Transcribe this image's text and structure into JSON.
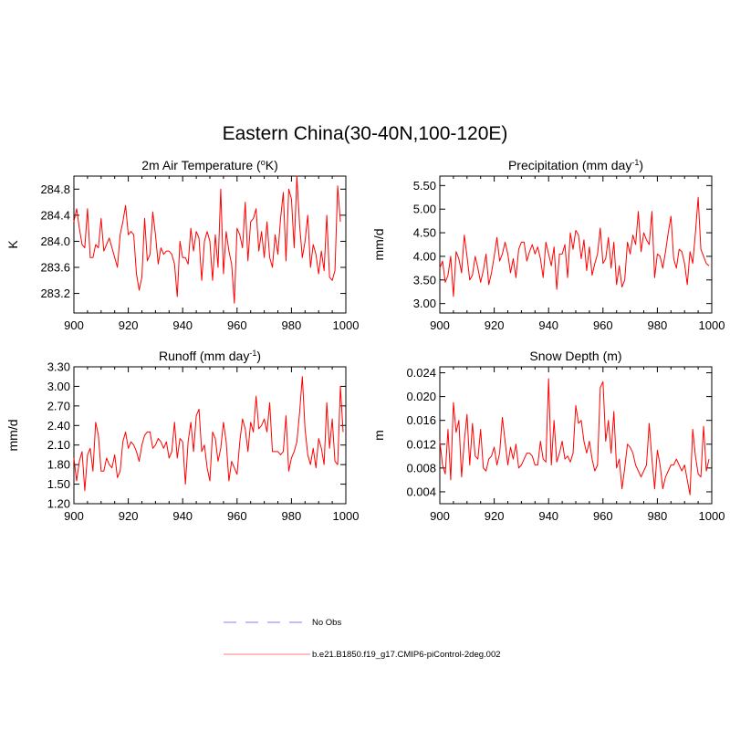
{
  "figure_title": "Eastern China(30-40N,100-120E)",
  "legend": {
    "entries": [
      {
        "label": "No Obs",
        "color": "#9999ff",
        "dash": "dashed"
      },
      {
        "label": "b.e21.B1850.f19_g17.CMIP6-piControl-2deg.002",
        "color": "#ff9999",
        "dash": "solid"
      }
    ]
  },
  "chart_data": [
    {
      "type": "line",
      "title": "2m Air Temperature (°K)",
      "title_main": "2m Air Temperature (",
      "title_sup": "o",
      "title_tail": "K)",
      "ylabel": "K",
      "xlim": [
        900,
        1000
      ],
      "ylim": [
        282.9,
        285.0
      ],
      "xticks": [
        900,
        920,
        940,
        960,
        980,
        1000
      ],
      "yticks": [
        283.2,
        283.6,
        284.0,
        284.4,
        284.8
      ],
      "ytick_labels": [
        "283.2",
        "283.6",
        "284.0",
        "284.4",
        "284.8"
      ],
      "series": [
        {
          "name": "b.e21.B1850.f19_g17.CMIP6-piControl-2deg.002",
          "color": "#ff0000",
          "x_start": 900,
          "values": [
            284.3,
            284.5,
            284.2,
            283.95,
            283.9,
            284.5,
            283.75,
            283.75,
            283.95,
            283.9,
            284.35,
            283.85,
            283.95,
            284.05,
            283.9,
            283.75,
            283.6,
            284.1,
            284.3,
            284.55,
            284.1,
            284.15,
            284.1,
            283.5,
            283.25,
            283.45,
            284.35,
            283.7,
            283.8,
            284.45,
            284.1,
            283.65,
            283.9,
            283.8,
            283.85,
            283.85,
            283.8,
            283.65,
            283.15,
            284.0,
            283.75,
            283.75,
            283.65,
            284.2,
            283.85,
            284.15,
            284.05,
            283.4,
            284.0,
            284.15,
            284.0,
            283.4,
            284.1,
            283.6,
            284.8,
            283.5,
            284.15,
            283.85,
            283.65,
            283.05,
            284.2,
            284.1,
            283.9,
            284.6,
            283.7,
            284.3,
            284.35,
            284.5,
            283.85,
            284.15,
            283.75,
            284.3,
            283.75,
            283.6,
            284.1,
            283.8,
            284.35,
            284.75,
            283.7,
            284.8,
            284.65,
            283.9,
            285.0,
            284.25,
            283.75,
            284.0,
            284.4,
            283.6,
            283.95,
            283.8,
            283.5,
            283.85,
            283.55,
            284.4,
            283.45,
            283.4,
            283.55,
            284.85,
            284.3
          ]
        }
      ]
    },
    {
      "type": "line",
      "title": "Precipitation (mm day-1)",
      "title_main": "Precipitation (mm day",
      "title_sup": "-1",
      "title_tail": ")",
      "ylabel": "mm/d",
      "xlim": [
        900,
        1000
      ],
      "ylim": [
        2.8,
        5.7
      ],
      "xticks": [
        900,
        920,
        940,
        960,
        980,
        1000
      ],
      "yticks": [
        3.0,
        3.5,
        4.0,
        4.5,
        5.0,
        5.5
      ],
      "ytick_labels": [
        "3.00",
        "3.50",
        "4.00",
        "4.50",
        "5.00",
        "5.50"
      ],
      "series": [
        {
          "name": "b.e21.B1850.f19_g17.CMIP6-piControl-2deg.002",
          "color": "#ff0000",
          "x_start": 900,
          "values": [
            3.75,
            3.9,
            3.45,
            3.6,
            4.0,
            3.15,
            4.1,
            3.95,
            3.65,
            4.45,
            4.0,
            3.5,
            3.6,
            4.0,
            3.75,
            3.45,
            3.7,
            4.05,
            3.4,
            3.65,
            4.0,
            4.4,
            3.9,
            4.05,
            4.3,
            4.05,
            3.65,
            3.95,
            3.55,
            4.15,
            4.3,
            4.3,
            3.9,
            4.1,
            4.25,
            4.05,
            4.2,
            3.95,
            3.55,
            4.3,
            4.05,
            3.8,
            4.2,
            3.3,
            4.05,
            4.05,
            4.25,
            3.55,
            4.5,
            4.15,
            4.55,
            4.45,
            3.95,
            4.35,
            3.7,
            4.2,
            3.6,
            3.85,
            4.05,
            4.6,
            3.85,
            3.95,
            4.4,
            3.75,
            4.3,
            3.4,
            3.8,
            3.35,
            3.5,
            4.3,
            4.05,
            4.45,
            4.25,
            4.95,
            4.1,
            4.5,
            4.35,
            4.25,
            4.95,
            3.55,
            4.05,
            4.0,
            3.75,
            4.1,
            4.5,
            4.85,
            3.95,
            3.75,
            4.15,
            4.1,
            3.85,
            3.4,
            4.1,
            3.85,
            4.5,
            5.25,
            4.15,
            4.0,
            3.85,
            3.8
          ]
        }
      ]
    },
    {
      "type": "line",
      "title": "Runoff (mm day-1)",
      "title_main": "Runoff (mm day",
      "title_sup": "-1",
      "title_tail": ")",
      "ylabel": "mm/d",
      "xlim": [
        900,
        1000
      ],
      "ylim": [
        1.2,
        3.3
      ],
      "xticks": [
        900,
        920,
        940,
        960,
        980,
        1000
      ],
      "yticks": [
        1.2,
        1.5,
        1.8,
        2.1,
        2.4,
        2.7,
        3.0,
        3.3
      ],
      "ytick_labels": [
        "1.20",
        "1.50",
        "1.80",
        "2.10",
        "2.40",
        "2.70",
        "3.00",
        "3.30"
      ],
      "series": [
        {
          "name": "b.e21.B1850.f19_g17.CMIP6-piControl-2deg.002",
          "color": "#ff0000",
          "x_start": 900,
          "values": [
            1.9,
            1.55,
            1.85,
            2.0,
            1.4,
            1.95,
            2.05,
            1.7,
            2.45,
            2.25,
            1.7,
            1.7,
            1.9,
            1.8,
            1.75,
            1.95,
            1.6,
            1.7,
            2.15,
            2.3,
            2.05,
            2.15,
            2.1,
            2.0,
            1.85,
            2.1,
            2.25,
            2.3,
            2.3,
            2.05,
            2.1,
            2.2,
            2.15,
            2.05,
            2.15,
            1.9,
            2.0,
            2.45,
            1.9,
            2.2,
            2.15,
            1.5,
            2.15,
            2.45,
            2.0,
            2.55,
            2.65,
            2.0,
            2.1,
            1.75,
            1.55,
            2.3,
            2.2,
            1.85,
            2.05,
            2.45,
            2.15,
            1.55,
            1.85,
            1.75,
            1.65,
            2.15,
            2.5,
            2.35,
            2.0,
            2.45,
            2.3,
            2.85,
            2.35,
            2.4,
            2.5,
            2.3,
            2.75,
            2.0,
            2.0,
            2.0,
            1.95,
            2.0,
            2.55,
            1.7,
            1.9,
            2.0,
            2.15,
            2.6,
            3.15,
            2.35,
            1.95,
            1.8,
            2.05,
            1.75,
            2.2,
            2.05,
            1.8,
            2.75,
            2.05,
            2.5,
            1.85,
            1.8,
            3.0,
            2.3
          ]
        }
      ]
    },
    {
      "type": "line",
      "title": "Snow Depth (m)",
      "title_main": "Snow Depth (m)",
      "title_sup": "",
      "title_tail": "",
      "ylabel": "m",
      "xlim": [
        900,
        1000
      ],
      "ylim": [
        0.002,
        0.025
      ],
      "xticks": [
        900,
        920,
        940,
        960,
        980,
        1000
      ],
      "yticks": [
        0.004,
        0.008,
        0.012,
        0.016,
        0.02,
        0.024
      ],
      "ytick_labels": [
        "0.004",
        "0.008",
        "0.012",
        "0.016",
        "0.020",
        "0.024"
      ],
      "series": [
        {
          "name": "b.e21.B1850.f19_g17.CMIP6-piControl-2deg.002",
          "color": "#ff0000",
          "x_start": 900,
          "values": [
            0.0125,
            0.0085,
            0.007,
            0.0145,
            0.006,
            0.019,
            0.014,
            0.016,
            0.0065,
            0.0125,
            0.017,
            0.0085,
            0.0155,
            0.01,
            0.0095,
            0.0145,
            0.008,
            0.0075,
            0.0095,
            0.01,
            0.0115,
            0.0085,
            0.0105,
            0.0165,
            0.0125,
            0.0085,
            0.0115,
            0.0095,
            0.012,
            0.008,
            0.0085,
            0.0095,
            0.0105,
            0.0105,
            0.01,
            0.0085,
            0.0085,
            0.0125,
            0.0095,
            0.009,
            0.023,
            0.0085,
            0.016,
            0.009,
            0.0105,
            0.0125,
            0.0095,
            0.01,
            0.009,
            0.0105,
            0.0185,
            0.0155,
            0.016,
            0.0125,
            0.0105,
            0.0125,
            0.0095,
            0.0075,
            0.0085,
            0.0215,
            0.0225,
            0.0125,
            0.016,
            0.0105,
            0.0175,
            0.008,
            0.0095,
            0.0045,
            0.008,
            0.012,
            0.0115,
            0.0105,
            0.0085,
            0.0075,
            0.0065,
            0.0075,
            0.0085,
            0.0155,
            0.0095,
            0.0045,
            0.011,
            0.0085,
            0.0045,
            0.0065,
            0.0075,
            0.0085,
            0.0085,
            0.0095,
            0.0085,
            0.0075,
            0.0085,
            0.006,
            0.0035,
            0.0145,
            0.01,
            0.007,
            0.0065,
            0.015,
            0.0075,
            0.0095
          ]
        }
      ]
    }
  ]
}
